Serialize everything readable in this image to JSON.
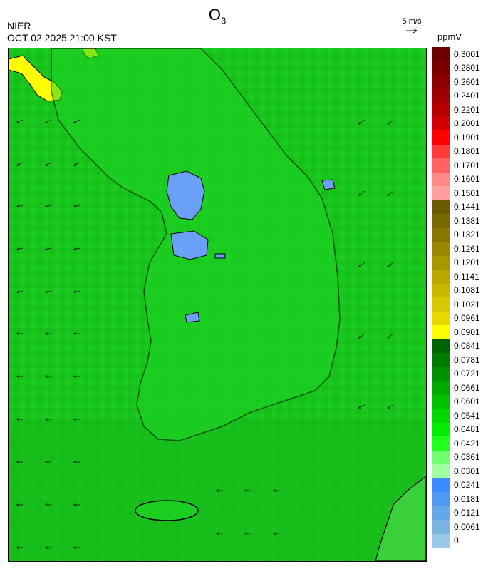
{
  "header": {
    "title_main": "O",
    "title_sub": "3",
    "org": "NIER",
    "timestamp": "OCT 02 2025 21:00 KST",
    "wind_scale_label": "5 m/s",
    "unit": "ppmV"
  },
  "legend": {
    "labels": [
      "0.3001",
      "0.2801",
      "0.2601",
      "0.2401",
      "0.2201",
      "0.2001",
      "0.1901",
      "0.1801",
      "0.1701",
      "0.1601",
      "0.1501",
      "0.1441",
      "0.1381",
      "0.1321",
      "0.1261",
      "0.1201",
      "0.1141",
      "0.1081",
      "0.1021",
      "0.0961",
      "0.0901",
      "0.0841",
      "0.0781",
      "0.0721",
      "0.0661",
      "0.0601",
      "0.0541",
      "0.0481",
      "0.0421",
      "0.0361",
      "0.0301",
      "0.0241",
      "0.0181",
      "0.0121",
      "0.0061",
      "0"
    ],
    "colors": [
      "#6a0000",
      "#7a0000",
      "#8c0000",
      "#a00000",
      "#b80000",
      "#d00000",
      "#ff0000",
      "#ff3a3a",
      "#ff6060",
      "#ff8888",
      "#ffa0a0",
      "#6a5a00",
      "#786800",
      "#887800",
      "#988800",
      "#a89800",
      "#b8a800",
      "#c8b800",
      "#d8c800",
      "#e8d800",
      "#ffff00",
      "#006400",
      "#007a00",
      "#009000",
      "#00a800",
      "#00c000",
      "#00d800",
      "#00ec00",
      "#20ff20",
      "#70ff70",
      "#a0ffa0",
      "#3a8cff",
      "#4f9af0",
      "#64a8e8",
      "#7ab4e0",
      "#9ac8e8"
    ]
  },
  "map": {
    "background_color": "#17c41c",
    "features": {
      "high_ozone_region": "yellow",
      "low_ozone_regions": "blue",
      "land_outline": "coastline"
    }
  }
}
